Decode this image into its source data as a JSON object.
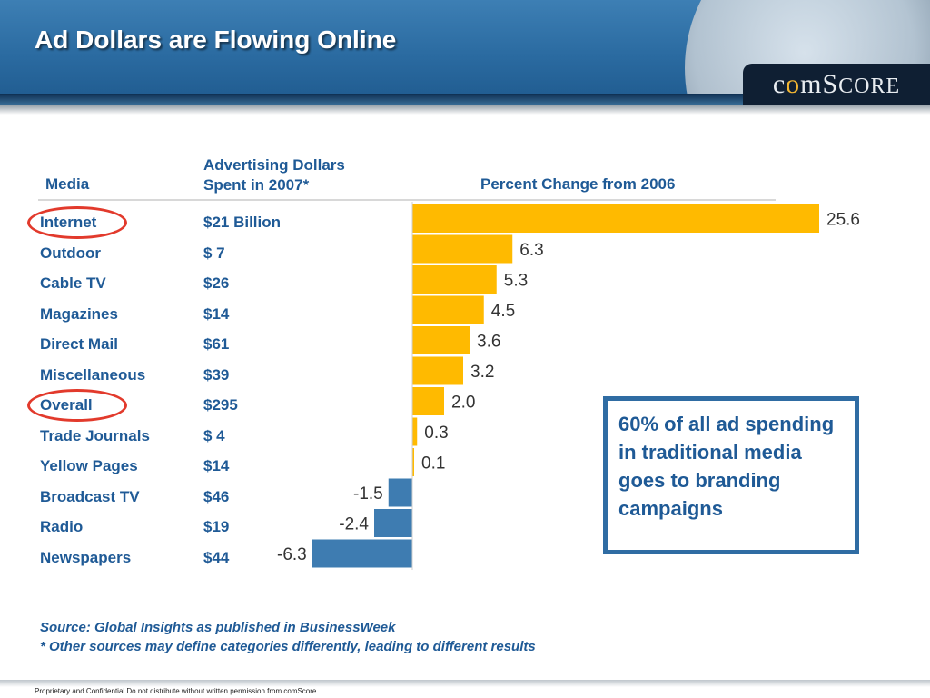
{
  "slide": {
    "title": "Ad Dollars are Flowing Online",
    "logo": "comScore",
    "source_line1": "Source: Global Insights as published in BusinessWeek",
    "source_line2": "* Other sources may define categories differently, leading to different results",
    "footer": "Proprietary and Confidential Do not distribute without written permission from comScore",
    "callout": "60% of all ad spending in traditional media goes to branding campaigns",
    "highlighted_rows": [
      "Internet",
      "Overall"
    ],
    "colors": {
      "header_blue": "#2a6aa0",
      "text_blue": "#1f5a96",
      "positive_bar": "#ffba00",
      "negative_bar": "#3e7cb1",
      "highlight_circle": "#e23a2c"
    }
  },
  "table": {
    "col_media": "Media",
    "col_spend_line1": "Advertising Dollars",
    "col_spend_line2": "Spent in 2007*",
    "col_change": "Percent Change from 2006",
    "rows": [
      {
        "media": "Internet",
        "spend": "$21 Billion"
      },
      {
        "media": "Outdoor",
        "spend": "$ 7"
      },
      {
        "media": "Cable TV",
        "spend": "$26"
      },
      {
        "media": "Magazines",
        "spend": "$14"
      },
      {
        "media": "Direct Mail",
        "spend": "$61"
      },
      {
        "media": "Miscellaneous",
        "spend": "$39"
      },
      {
        "media": "Overall",
        "spend": "$295"
      },
      {
        "media": "Trade Journals",
        "spend": "$ 4"
      },
      {
        "media": "Yellow Pages",
        "spend": "$14"
      },
      {
        "media": "Broadcast TV",
        "spend": "$46"
      },
      {
        "media": "Radio",
        "spend": "$19"
      },
      {
        "media": "Newspapers",
        "spend": "$44"
      }
    ]
  },
  "chart_data": {
    "type": "bar",
    "orientation": "horizontal",
    "title": "Percent Change from 2006",
    "categories": [
      "Internet",
      "Outdoor",
      "Cable TV",
      "Magazines",
      "Direct Mail",
      "Miscellaneous",
      "Overall",
      "Trade Journals",
      "Yellow Pages",
      "Broadcast TV",
      "Radio",
      "Newspapers"
    ],
    "values": [
      25.6,
      6.3,
      5.3,
      4.5,
      3.6,
      3.2,
      2.0,
      0.3,
      0.1,
      -1.5,
      -2.4,
      -6.3
    ],
    "value_labels": [
      "25.6",
      "6.3",
      "5.3",
      "4.5",
      "3.6",
      "3.2",
      "2.0",
      "0.3",
      "0.1",
      "-1.5",
      "-2.4",
      "-6.3"
    ],
    "xlim": [
      -6.3,
      25.6
    ],
    "grid": false,
    "legend": "none"
  }
}
